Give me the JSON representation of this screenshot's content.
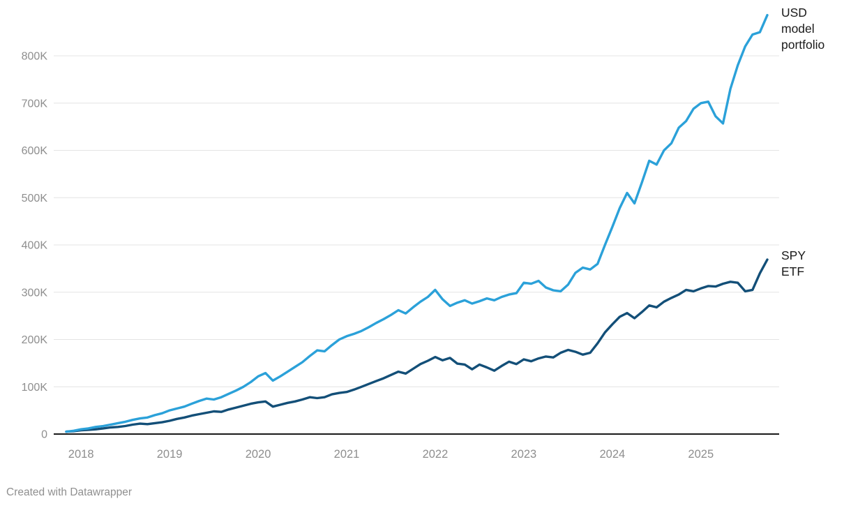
{
  "chart_data": {
    "type": "line",
    "title": "",
    "xlabel": "",
    "ylabel": "",
    "x_start_month": "2017-11",
    "x_end_month": "2025-10",
    "x_ticks": [
      "2018",
      "2019",
      "2020",
      "2021",
      "2022",
      "2023",
      "2024",
      "2025"
    ],
    "y_ticks": [
      {
        "value": 0,
        "label": "0"
      },
      {
        "value": 100,
        "label": "100K"
      },
      {
        "value": 200,
        "label": "200K"
      },
      {
        "value": 300,
        "label": "300K"
      },
      {
        "value": 400,
        "label": "400K"
      },
      {
        "value": 500,
        "label": "500K"
      },
      {
        "value": 600,
        "label": "600K"
      },
      {
        "value": 700,
        "label": "700K"
      },
      {
        "value": 800,
        "label": "800K"
      }
    ],
    "ylim": [
      0,
      890
    ],
    "y_unit": "K (thousand USD)",
    "grid": "horizontal",
    "legend_position": "end-of-line",
    "series": [
      {
        "name": "SPY ETF",
        "color": "#134f78",
        "values_monthly_K": [
          5,
          6,
          8,
          9,
          10,
          12,
          14,
          15,
          17,
          20,
          22,
          21,
          23,
          25,
          28,
          32,
          35,
          39,
          42,
          45,
          48,
          47,
          52,
          56,
          60,
          64,
          67,
          69,
          58,
          62,
          66,
          69,
          73,
          78,
          76,
          78,
          84,
          87,
          89,
          94,
          100,
          106,
          112,
          118,
          125,
          132,
          128,
          138,
          148,
          155,
          163,
          156,
          161,
          149,
          147,
          137,
          147,
          141,
          134,
          144,
          153,
          148,
          158,
          154,
          160,
          164,
          162,
          172,
          178,
          174,
          168,
          172,
          192,
          215,
          232,
          248,
          256,
          245,
          258,
          272,
          268,
          280,
          288,
          295,
          305,
          302,
          308,
          313,
          312,
          318,
          322,
          320,
          302,
          305,
          340,
          369
        ]
      },
      {
        "name": "USD model portfolio",
        "color": "#2ba1d9",
        "values_monthly_K": [
          5,
          7,
          10,
          12,
          15,
          17,
          20,
          23,
          26,
          30,
          33,
          35,
          40,
          44,
          50,
          54,
          58,
          64,
          70,
          75,
          73,
          78,
          85,
          92,
          100,
          110,
          122,
          129,
          113,
          122,
          132,
          142,
          152,
          165,
          177,
          175,
          188,
          200,
          207,
          212,
          218,
          226,
          235,
          243,
          252,
          262,
          255,
          268,
          280,
          290,
          305,
          285,
          271,
          278,
          283,
          276,
          281,
          287,
          283,
          290,
          295,
          298,
          320,
          318,
          324,
          310,
          304,
          302,
          316,
          341,
          352,
          348,
          360,
          400,
          438,
          478,
          510,
          488,
          532,
          578,
          570,
          600,
          615,
          648,
          662,
          688,
          700,
          703,
          672,
          657,
          730,
          780,
          820,
          845,
          850,
          886
        ]
      }
    ]
  },
  "labels": {
    "usd_series": "USD model portfolio",
    "spy_series": "SPY ETF"
  },
  "footer": {
    "credit": "Created with Datawrapper"
  },
  "colors": {
    "usd_line": "#2ba1d9",
    "spy_line": "#134f78",
    "axis_line": "#1a1a1a",
    "gridline": "#e4e4e4",
    "tick_label": "#8e8e8e",
    "series_label_text": "#1a1a1a",
    "credit_text": "#8f8f8f"
  }
}
